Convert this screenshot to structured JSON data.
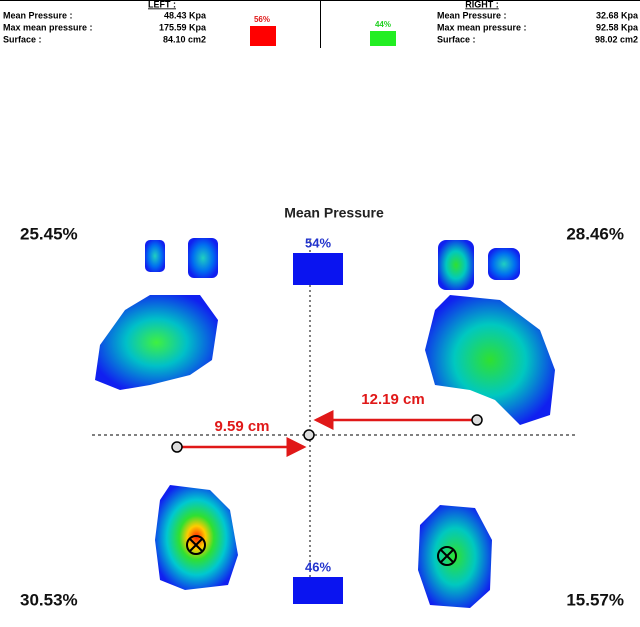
{
  "left_panel": {
    "heading": "LEFT :",
    "rows": [
      {
        "label": "Mean Pressure :",
        "value": "48.43 Kpa"
      },
      {
        "label": "Max mean pressure :",
        "value": "175.59 Kpa"
      },
      {
        "label": "Surface :",
        "value": "84.10 cm2"
      }
    ],
    "share": "56%"
  },
  "right_panel": {
    "heading": "RIGHT :",
    "rows": [
      {
        "label": "Mean Pressure :",
        "value": "32.68 Kpa"
      },
      {
        "label": "Max mean pressure :",
        "value": "92.58 Kpa"
      },
      {
        "label": "Surface :",
        "value": "98.02 cm2"
      }
    ],
    "share": "44%"
  },
  "title": "Mean Pressure",
  "quadrants": {
    "top_left": "25.45%",
    "top_right": "28.46%",
    "bottom_left": "30.53%",
    "bottom_right": "15.57%"
  },
  "front_share": "54%",
  "rear_share": "46%",
  "distances": {
    "left": "9.59 cm",
    "right": "12.19 cm"
  }
}
